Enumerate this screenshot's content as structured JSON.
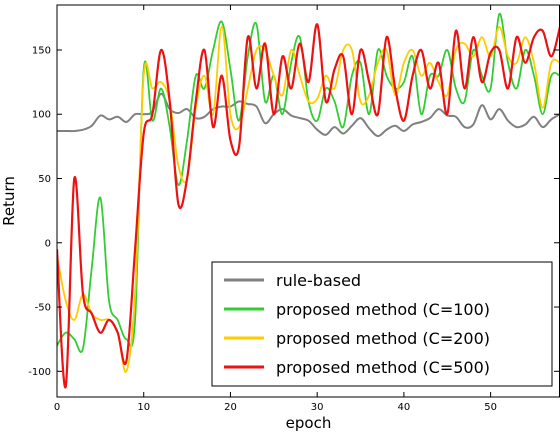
{
  "chart_data": {
    "type": "line",
    "xlabel": "epoch",
    "ylabel": "Return",
    "xlim": [
      0,
      58
    ],
    "ylim": [
      -120,
      185
    ],
    "xticks": [
      0,
      10,
      20,
      30,
      40,
      50
    ],
    "yticks": [
      -100,
      -50,
      0,
      50,
      100,
      150
    ],
    "legend_position": "lower-right",
    "series": [
      {
        "name": "rule-based",
        "color": "#808080",
        "x": [
          0,
          1,
          2,
          3,
          4,
          5,
          6,
          7,
          8,
          9,
          10,
          11,
          12,
          13,
          14,
          15,
          16,
          17,
          18,
          19,
          20,
          21,
          22,
          23,
          24,
          25,
          26,
          27,
          28,
          29,
          30,
          31,
          32,
          33,
          34,
          35,
          36,
          37,
          38,
          39,
          40,
          41,
          42,
          43,
          44,
          45,
          46,
          47,
          48,
          49,
          50,
          51,
          52,
          53,
          54,
          55,
          56,
          57,
          58
        ],
        "y": [
          87,
          87,
          87,
          88,
          91,
          99,
          96,
          98,
          94,
          100,
          100,
          102,
          116,
          104,
          101,
          104,
          97,
          98,
          104,
          106,
          106,
          110,
          108,
          106,
          93,
          100,
          104,
          99,
          97,
          95,
          88,
          84,
          90,
          85,
          91,
          97,
          89,
          83,
          88,
          91,
          87,
          92,
          94,
          97,
          104,
          99,
          98,
          90,
          92,
          107,
          96,
          104,
          95,
          90,
          92,
          98,
          90,
          96,
          100
        ]
      },
      {
        "name": "proposed method (C=100)",
        "color": "#33cc33",
        "x": [
          0,
          1,
          2,
          3,
          4,
          5,
          6,
          7,
          8,
          9,
          10,
          11,
          12,
          13,
          14,
          15,
          16,
          17,
          18,
          19,
          20,
          21,
          22,
          23,
          24,
          25,
          26,
          27,
          28,
          29,
          30,
          31,
          32,
          33,
          34,
          35,
          36,
          37,
          38,
          39,
          40,
          41,
          42,
          43,
          44,
          45,
          46,
          47,
          48,
          49,
          50,
          51,
          52,
          53,
          54,
          55,
          56,
          57,
          58
        ],
        "y": [
          -80,
          -70,
          -75,
          -82,
          -20,
          35,
          -45,
          -60,
          -75,
          -60,
          135,
          95,
          120,
          90,
          45,
          80,
          130,
          120,
          150,
          172,
          135,
          95,
          145,
          170,
          110,
          130,
          100,
          140,
          160,
          110,
          95,
          120,
          110,
          90,
          130,
          140,
          100,
          150,
          130,
          120,
          125,
          145,
          100,
          130,
          130,
          150,
          120,
          110,
          150,
          130,
          120,
          178,
          140,
          120,
          150,
          130,
          100,
          130,
          130
        ]
      },
      {
        "name": "proposed method (C=200)",
        "color": "#ffcc00",
        "x": [
          0,
          1,
          2,
          3,
          4,
          5,
          6,
          7,
          8,
          9,
          10,
          11,
          12,
          13,
          14,
          15,
          16,
          17,
          18,
          19,
          20,
          21,
          22,
          23,
          24,
          25,
          26,
          27,
          28,
          29,
          30,
          31,
          32,
          33,
          34,
          35,
          36,
          37,
          38,
          39,
          40,
          41,
          42,
          43,
          44,
          45,
          46,
          47,
          48,
          49,
          50,
          51,
          52,
          53,
          54,
          55,
          56,
          57,
          58
        ],
        "y": [
          -10,
          -45,
          -60,
          -40,
          -55,
          -60,
          -60,
          -70,
          -100,
          -40,
          130,
          120,
          125,
          110,
          60,
          50,
          105,
          130,
          100,
          168,
          100,
          90,
          120,
          150,
          150,
          130,
          115,
          150,
          130,
          110,
          112,
          130,
          120,
          150,
          150,
          110,
          115,
          140,
          150,
          115,
          140,
          150,
          130,
          140,
          125,
          115,
          150,
          155,
          145,
          160,
          145,
          168,
          145,
          140,
          160,
          140,
          105,
          140,
          140
        ]
      },
      {
        "name": "proposed method (C=500)",
        "color": "#ee1111",
        "x": [
          0,
          1,
          2,
          3,
          4,
          5,
          6,
          7,
          8,
          9,
          10,
          11,
          12,
          13,
          14,
          15,
          16,
          17,
          18,
          19,
          20,
          21,
          22,
          23,
          24,
          25,
          26,
          27,
          28,
          29,
          30,
          31,
          32,
          33,
          34,
          35,
          36,
          37,
          38,
          39,
          40,
          41,
          42,
          43,
          44,
          45,
          46,
          47,
          48,
          49,
          50,
          51,
          52,
          53,
          54,
          55,
          56,
          57,
          58
        ],
        "y": [
          -5,
          -112,
          50,
          -40,
          -55,
          -70,
          -60,
          -70,
          -92,
          -5,
          85,
          100,
          150,
          110,
          30,
          50,
          110,
          150,
          90,
          130,
          80,
          75,
          160,
          120,
          155,
          100,
          145,
          120,
          155,
          125,
          170,
          110,
          135,
          145,
          100,
          150,
          125,
          100,
          160,
          120,
          95,
          130,
          150,
          120,
          140,
          100,
          165,
          120,
          160,
          125,
          148,
          150,
          120,
          160,
          140,
          160,
          165,
          145,
          168
        ]
      }
    ]
  }
}
